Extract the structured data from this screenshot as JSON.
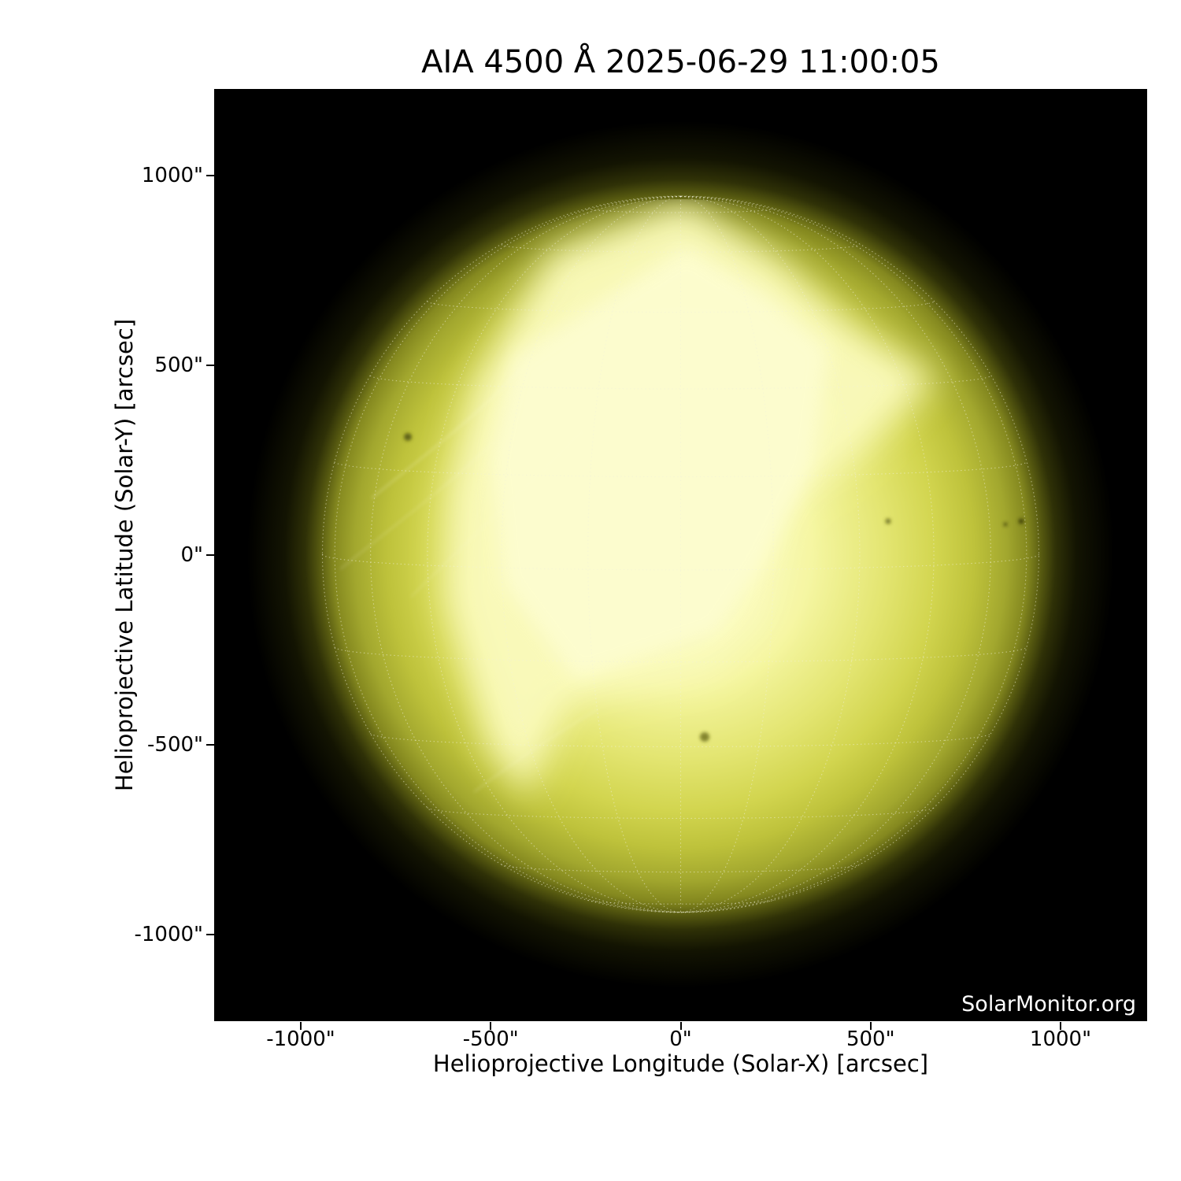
{
  "figure": {
    "background_color": "#ffffff",
    "plot_background": "#000000",
    "text_color": "#000000",
    "watermark_color": "#ffffff"
  },
  "chart_data": {
    "type": "heatmap",
    "title": "AIA 4500 Å 2025-06-29 11:00:05",
    "instrument": "AIA",
    "wavelength": "4500 Å",
    "observation_time": "2025-06-29 11:00:05",
    "xlabel": "Helioprojective Longitude (Solar-X) [arcsec]",
    "ylabel": "Helioprojective Latitude (Solar-Y) [arcsec]",
    "xlim": [
      -1228,
      1228
    ],
    "ylim": [
      -1228,
      1228
    ],
    "x_tick_values": [
      -1000,
      -500,
      0,
      500,
      1000
    ],
    "x_tick_labels": [
      "-1000\"",
      "-500\"",
      "0\"",
      "500\"",
      "1000\""
    ],
    "y_tick_values": [
      1000,
      500,
      0,
      -500,
      -1000
    ],
    "y_tick_labels": [
      "1000\"",
      "500\"",
      "0\"",
      "-500\"",
      "-1000\""
    ],
    "grid": {
      "overlay": "heliographic Stonyhurst grid, 15 degree spacing, dotted",
      "color": "#f0f0d8"
    },
    "solar_disk": {
      "center_arcsec": [
        0,
        0
      ],
      "radius_arcsec": 944,
      "limb_color": "#6f7218",
      "mid_color": "#c9cd3f",
      "bright_core_color": "#fbfcc0",
      "background": "#000000",
      "bright_saturated_region": "irregular pale-yellow overexposed area covering disk center, extending to upper right (~+650,+450 arcsec) with diagonal dark wedge from the east limb and V-shaped notch at lower center (~-400,-600 arcsec)",
      "sunspots_arcsec": [
        [
          -718,
          309
        ],
        [
          63,
          -481
        ],
        [
          546,
          87
        ],
        [
          890,
          85
        ]
      ]
    },
    "legend": null,
    "watermark": "SolarMonitor.org"
  }
}
